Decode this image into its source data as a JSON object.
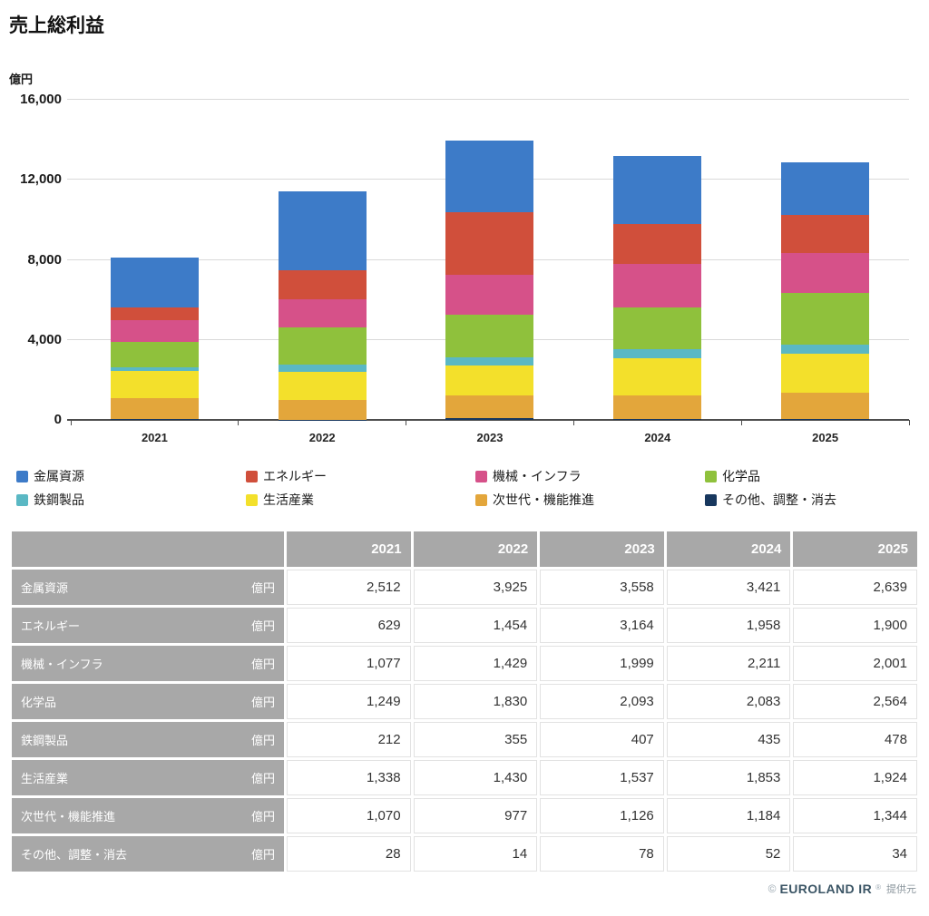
{
  "title": "売上総利益",
  "unit_label": "億円",
  "colors": {
    "grid": "#d9d9d9",
    "axis": "#4d4d4d",
    "table_gray": "#a8a8a8",
    "table_text": "#333333",
    "brand_text": "#3b5565"
  },
  "chart_data": {
    "type": "bar",
    "stacked": true,
    "title": "売上総利益",
    "ylabel": "億円",
    "xlabel": "",
    "ylim": [
      0,
      16000
    ],
    "yticks": [
      0,
      4000,
      8000,
      12000,
      16000
    ],
    "grid": true,
    "legend_position": "bottom",
    "categories": [
      "2021",
      "2022",
      "2023",
      "2024",
      "2025"
    ],
    "series": [
      {
        "name": "金属資源",
        "color": "#3d7bc8",
        "values": [
          2512,
          3925,
          3558,
          3421,
          2639
        ]
      },
      {
        "name": "エネルギー",
        "color": "#d04f3b",
        "values": [
          629,
          1454,
          3164,
          1958,
          1900
        ]
      },
      {
        "name": "機械・インフラ",
        "color": "#d65189",
        "values": [
          1077,
          1429,
          1999,
          2211,
          2001
        ]
      },
      {
        "name": "化学品",
        "color": "#8fc13c",
        "values": [
          1249,
          1830,
          2093,
          2083,
          2564
        ]
      },
      {
        "name": "鉄鋼製品",
        "color": "#5ab8c4",
        "values": [
          212,
          355,
          407,
          435,
          478
        ]
      },
      {
        "name": "生活産業",
        "color": "#f3e02b",
        "values": [
          1338,
          1430,
          1537,
          1853,
          1924
        ]
      },
      {
        "name": "次世代・機能推進",
        "color": "#e3a63b",
        "values": [
          1070,
          977,
          1126,
          1184,
          1344
        ]
      },
      {
        "name": "その他、調整・消去",
        "color": "#17375e",
        "values": [
          28,
          14,
          78,
          52,
          34
        ]
      }
    ],
    "stack_order_bottom_to_top": [
      "その他、調整・消去",
      "次世代・機能推進",
      "生活産業",
      "鉄鋼製品",
      "化学品",
      "機械・インフラ",
      "エネルギー",
      "金属資源"
    ]
  },
  "table": {
    "unit": "億円",
    "columns": [
      "2021",
      "2022",
      "2023",
      "2024",
      "2025"
    ],
    "rows": [
      {
        "label": "金属資源",
        "unit": "億円",
        "values": [
          2512,
          3925,
          3558,
          3421,
          2639
        ]
      },
      {
        "label": "エネルギー",
        "unit": "億円",
        "values": [
          629,
          1454,
          3164,
          1958,
          1900
        ]
      },
      {
        "label": "機械・インフラ",
        "unit": "億円",
        "values": [
          1077,
          1429,
          1999,
          2211,
          2001
        ]
      },
      {
        "label": "化学品",
        "unit": "億円",
        "values": [
          1249,
          1830,
          2093,
          2083,
          2564
        ]
      },
      {
        "label": "鉄鋼製品",
        "unit": "億円",
        "values": [
          212,
          355,
          407,
          435,
          478
        ]
      },
      {
        "label": "生活産業",
        "unit": "億円",
        "values": [
          1338,
          1430,
          1537,
          1853,
          1924
        ]
      },
      {
        "label": "次世代・機能推進",
        "unit": "億円",
        "values": [
          1070,
          977,
          1126,
          1184,
          1344
        ]
      },
      {
        "label": "その他、調整・消去",
        "unit": "億円",
        "values": [
          28,
          14,
          78,
          52,
          34
        ]
      }
    ]
  },
  "footer": {
    "copyright": "©",
    "brand": "EUROLAND IR",
    "reg": "®",
    "provider": "提供元"
  }
}
